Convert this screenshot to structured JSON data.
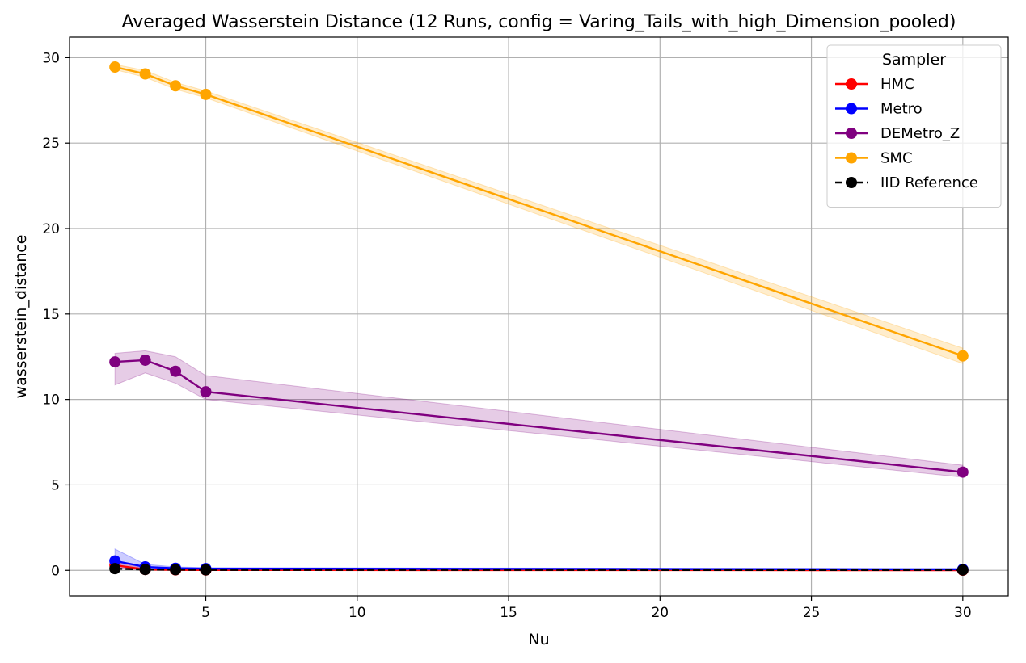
{
  "chart_data": {
    "type": "line",
    "title": "Averaged Wasserstein Distance (12 Runs, config = Varing_Tails_with_high_Dimension_pooled)",
    "xlabel": "Nu",
    "ylabel": "wasserstein_distance",
    "x": [
      2,
      3,
      4,
      5,
      30
    ],
    "xlim": [
      0.5,
      31.5
    ],
    "ylim": [
      -1.5,
      31.2
    ],
    "xticks": [
      5,
      10,
      15,
      20,
      25,
      30
    ],
    "yticks": [
      0,
      5,
      10,
      15,
      20,
      25,
      30
    ],
    "grid": true,
    "legend": {
      "title": "Sampler",
      "position": "top-right"
    },
    "series": [
      {
        "name": "HMC",
        "color": "#ff0000",
        "dashed": false,
        "values": [
          0.3,
          0.05,
          0.03,
          0.02,
          0.01
        ],
        "band_low": [
          0.1,
          0.02,
          0.01,
          0.01,
          0.0
        ],
        "band_high": [
          0.5,
          0.1,
          0.06,
          0.04,
          0.03
        ]
      },
      {
        "name": "Metro",
        "color": "#0000ff",
        "dashed": false,
        "values": [
          0.55,
          0.2,
          0.12,
          0.1,
          0.06
        ],
        "band_low": [
          0.1,
          0.05,
          0.05,
          0.04,
          0.02
        ],
        "band_high": [
          1.25,
          0.35,
          0.2,
          0.16,
          0.1
        ]
      },
      {
        "name": "DEMetro_Z",
        "color": "#800080",
        "dashed": false,
        "values": [
          12.2,
          12.3,
          11.65,
          10.45,
          5.75
        ],
        "band_low": [
          10.85,
          11.55,
          10.95,
          10.0,
          5.45
        ],
        "band_high": [
          12.7,
          12.85,
          12.5,
          11.4,
          6.15
        ]
      },
      {
        "name": "SMC",
        "color": "#ffa500",
        "dashed": false,
        "values": [
          29.45,
          29.05,
          28.35,
          27.85,
          12.55
        ],
        "band_low": [
          29.3,
          28.85,
          28.15,
          27.65,
          12.1
        ],
        "band_high": [
          29.6,
          29.25,
          28.55,
          28.05,
          13.0
        ]
      },
      {
        "name": "IID Reference",
        "color": "#000000",
        "dashed": true,
        "values": [
          0.1,
          0.05,
          0.04,
          0.03,
          0.02
        ]
      }
    ]
  }
}
